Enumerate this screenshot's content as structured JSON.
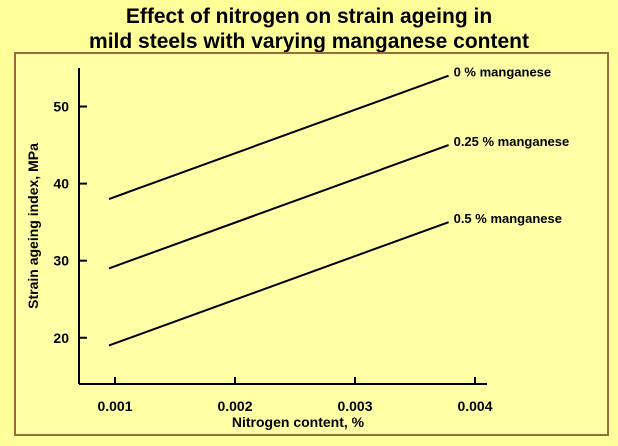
{
  "title_line1": "Effect of nitrogen on strain ageing in",
  "title_line2": "mild steels with varying manganese content",
  "chart_data": {
    "type": "line",
    "title": "Effect of nitrogen on strain ageing in mild steels with varying manganese content",
    "xlabel": "Nitrogen content, %",
    "ylabel": "Strain ageing index, MPa",
    "xlim": [
      0.0007,
      0.0041
    ],
    "ylim": [
      14,
      55
    ],
    "xticks": [
      0.001,
      0.002,
      0.003,
      0.004
    ],
    "xtick_labels": [
      "0.001",
      "0.002",
      "0.003",
      "0.004"
    ],
    "yticks": [
      20,
      30,
      40,
      50
    ],
    "ytick_labels": [
      "20",
      "30",
      "40",
      "50"
    ],
    "grid": false,
    "series": [
      {
        "name": "0 % manganese",
        "x": [
          0.00095,
          0.00378
        ],
        "y": [
          38,
          54
        ]
      },
      {
        "name": "0.25 % manganese",
        "x": [
          0.00095,
          0.00378
        ],
        "y": [
          29,
          45
        ]
      },
      {
        "name": "0.5 % manganese",
        "x": [
          0.00095,
          0.00378
        ],
        "y": [
          19,
          35
        ]
      }
    ]
  }
}
